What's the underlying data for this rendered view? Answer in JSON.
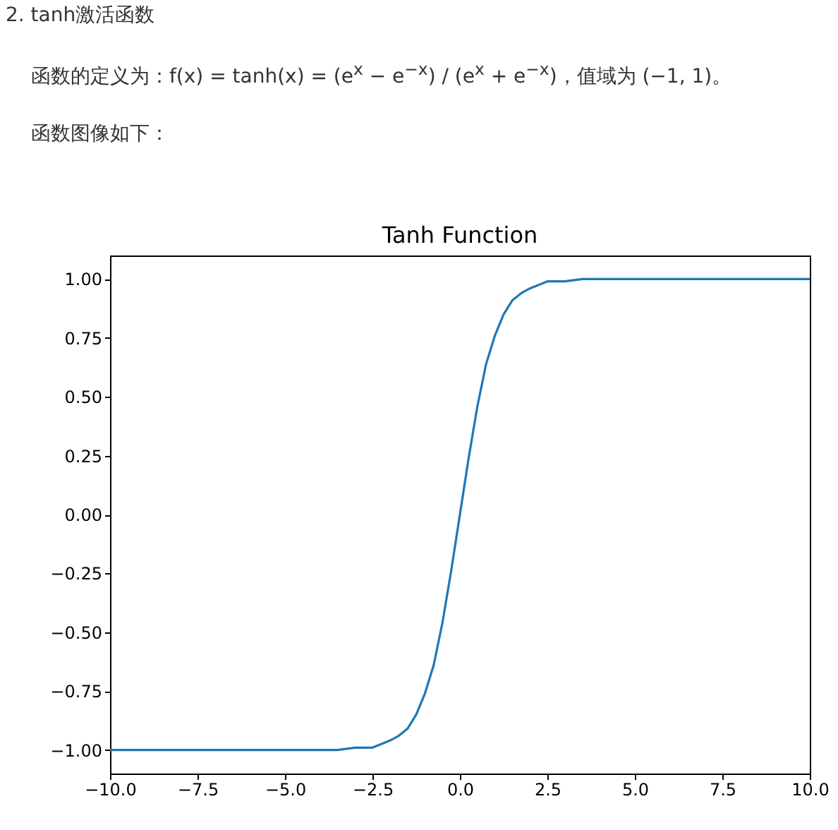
{
  "chart_data": {
    "type": "line",
    "title": "Tanh Function",
    "annotations": [
      "2. tanh激活函数",
      "函数的定义为：f(x) = tanh(x) = (e$^{x}$ − e$^{−x}$) / (e$^{x}$ + e$^{−x}$)，值域为 (−1, 1)。",
      "函数图像如下："
    ],
    "x": [
      -10,
      -7.5,
      -5,
      -4,
      -3.5,
      -3,
      -2.5,
      -2,
      -1.75,
      -1.5,
      -1.25,
      -1,
      -0.75,
      -0.5,
      -0.25,
      0,
      0.25,
      0.5,
      0.75,
      1,
      1.25,
      1.5,
      1.75,
      2,
      2.5,
      3,
      3.5,
      4,
      5,
      7.5,
      10
    ],
    "series": [
      {
        "color": "#1f77b4",
        "values": [
          -1,
          -1,
          -1,
          -1,
          -1,
          -0.99,
          -0.99,
          -0.96,
          -0.94,
          -0.91,
          -0.85,
          -0.76,
          -0.64,
          -0.46,
          -0.24,
          0,
          0.24,
          0.46,
          0.64,
          0.76,
          0.85,
          0.91,
          0.94,
          0.96,
          0.99,
          0.99,
          1,
          1,
          1,
          1,
          1
        ]
      }
    ],
    "xlim": [
      -10,
      10
    ],
    "xticks": [
      {
        "value": -10,
        "label": "−10.0"
      },
      {
        "value": -7.5,
        "label": "−7.5"
      },
      {
        "value": -5,
        "label": "−5.0"
      },
      {
        "value": -2.5,
        "label": "−2.5"
      },
      {
        "value": 0,
        "label": "0.0"
      },
      {
        "value": 2.5,
        "label": "2.5"
      },
      {
        "value": 5,
        "label": "5.0"
      },
      {
        "value": 7.5,
        "label": "7.5"
      },
      {
        "value": 10,
        "label": "10.0"
      }
    ],
    "ylim": [
      -1.1,
      1.1
    ],
    "yticks": [
      {
        "value": -1,
        "label": "−1.00"
      },
      {
        "value": -0.75,
        "label": "−0.75"
      },
      {
        "value": -0.5,
        "label": "−0.50"
      },
      {
        "value": -0.25,
        "label": "−0.25"
      },
      {
        "value": 0,
        "label": "0.00"
      },
      {
        "value": 0.25,
        "label": "0.25"
      },
      {
        "value": 0.5,
        "label": "0.50"
      },
      {
        "value": 0.75,
        "label": "0.75"
      },
      {
        "value": 1,
        "label": "1.00"
      }
    ],
    "grid": false,
    "legend": false,
    "marker": "none",
    "line_style": "solid"
  }
}
